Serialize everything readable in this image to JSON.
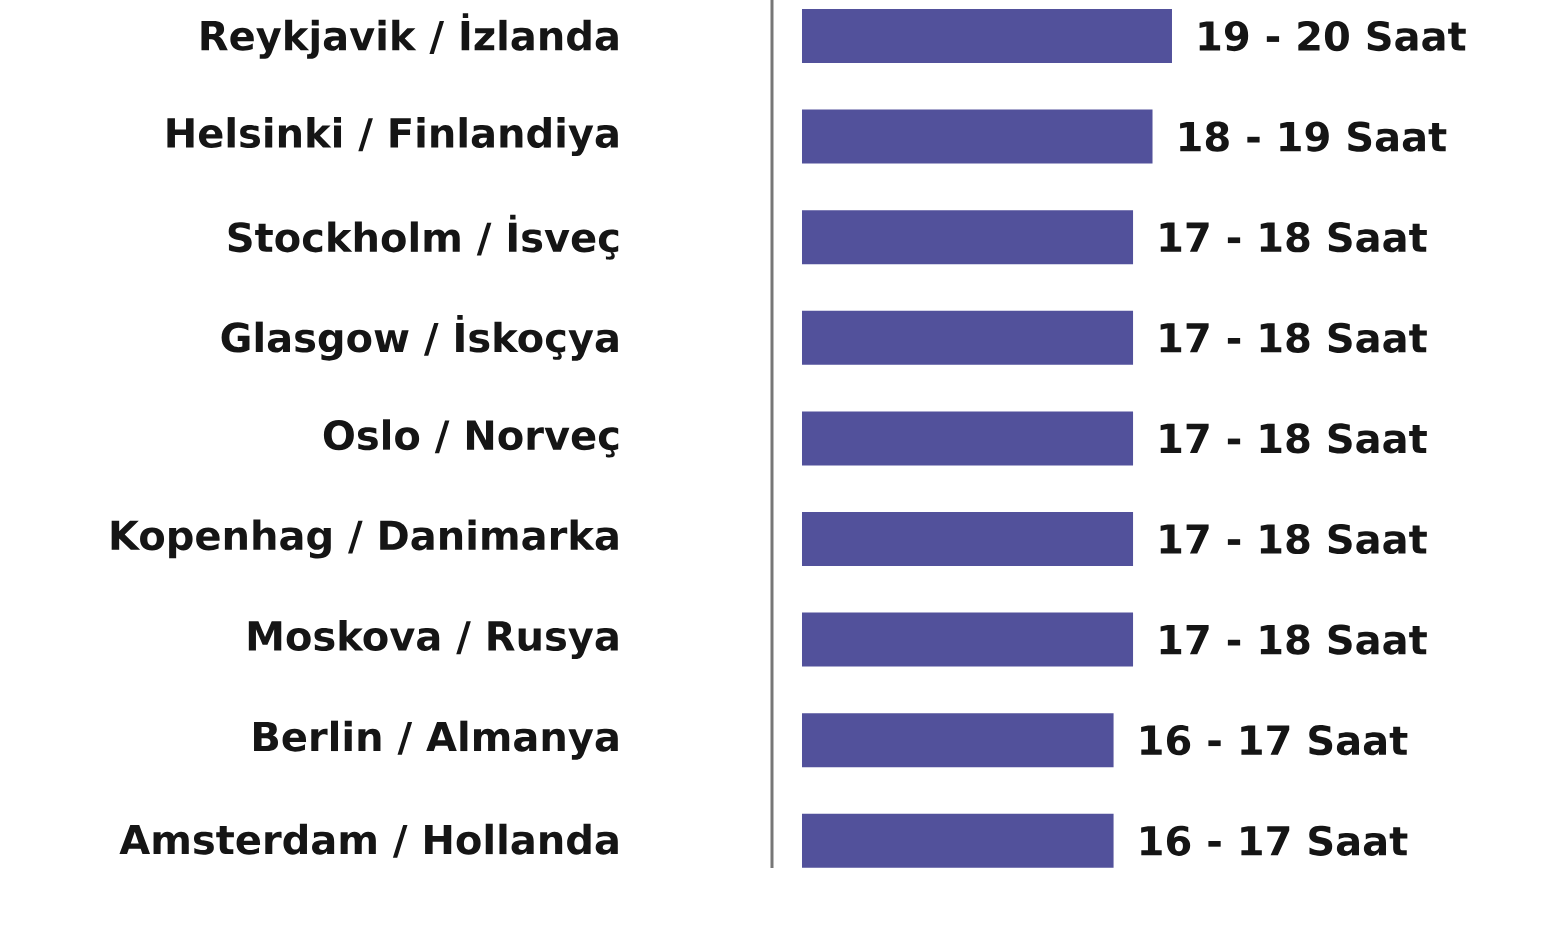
{
  "chart_data": {
    "type": "bar",
    "orientation": "horizontal",
    "categories": [
      "Reykjavik / İzlanda",
      "Helsinki / Finlandiya",
      "Stockholm / İsveç",
      "Glasgow / İskoçya",
      "Oslo / Norveç",
      "Kopenhag / Danimarka",
      "Moskova / Rusya",
      "Berlin / Almanya",
      "Amsterdam / Hollanda"
    ],
    "values": [
      19,
      18,
      17,
      17,
      17,
      17,
      17,
      16,
      16
    ],
    "color": "#52519b",
    "value_labels": [
      "19 - 20 Saat",
      "18 - 19 Saat",
      "17 - 18 Saat",
      "17 - 18 Saat",
      "17 - 18 Saat",
      "17 - 18 Saat",
      "17 - 18 Saat",
      "16 - 17 Saat",
      "16 - 17 Saat"
    ]
  }
}
